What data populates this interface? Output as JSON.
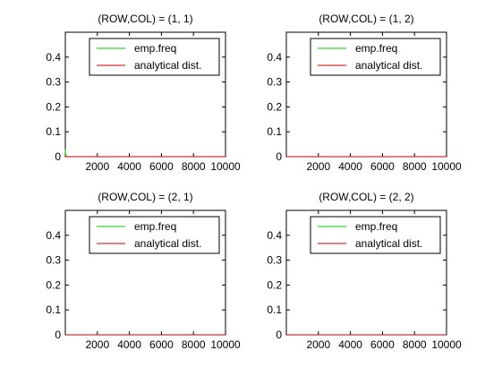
{
  "figure": {
    "background": "#ffffff",
    "axes_color": "#000000"
  },
  "chart_data": [
    {
      "type": "line",
      "title": "(ROW,COL) = (1, 1)",
      "xlabel": "",
      "ylabel": "",
      "xlim": [
        0,
        10000
      ],
      "ylim": [
        0,
        0.5
      ],
      "xticks": [
        2000,
        4000,
        6000,
        8000,
        10000
      ],
      "xtick_labels": [
        "2000",
        "4000",
        "6000",
        "8000",
        "10000"
      ],
      "yticks": [
        0,
        0.1,
        0.2,
        0.3,
        0.4
      ],
      "ytick_labels": [
        "0",
        "0.1",
        "0.2",
        "0.3",
        "0.4"
      ],
      "grid": false,
      "legend": "top-right",
      "series": [
        {
          "name": "emp.freq",
          "color": "#00cc00",
          "x": [
            1,
            10,
            30,
            60,
            100,
            200,
            500,
            1000,
            10000
          ],
          "y": [
            0.03,
            0.012,
            0.004,
            0.002,
            0.001,
            0.0005,
            0.0002,
            0.0001,
            0
          ]
        },
        {
          "name": "analytical dist.",
          "color": "#cc0000",
          "x": [
            0,
            10000
          ],
          "y": [
            0,
            0
          ]
        }
      ]
    },
    {
      "type": "line",
      "title": "(ROW,COL) = (1, 2)",
      "xlabel": "",
      "ylabel": "",
      "xlim": [
        0,
        10000
      ],
      "ylim": [
        0,
        0.5
      ],
      "xticks": [
        2000,
        4000,
        6000,
        8000,
        10000
      ],
      "xtick_labels": [
        "2000",
        "4000",
        "6000",
        "8000",
        "10000"
      ],
      "yticks": [
        0,
        0.1,
        0.2,
        0.3,
        0.4
      ],
      "ytick_labels": [
        "0",
        "0.1",
        "0.2",
        "0.3",
        "0.4"
      ],
      "grid": false,
      "legend": "top-right",
      "series": [
        {
          "name": "emp.freq",
          "color": "#00cc00",
          "x": [
            0,
            10000
          ],
          "y": [
            0,
            0
          ]
        },
        {
          "name": "analytical dist.",
          "color": "#cc0000",
          "x": [
            0,
            10000
          ],
          "y": [
            0,
            0
          ]
        }
      ]
    },
    {
      "type": "line",
      "title": "(ROW,COL) = (2, 1)",
      "xlabel": "",
      "ylabel": "",
      "xlim": [
        0,
        10000
      ],
      "ylim": [
        0,
        0.5
      ],
      "xticks": [
        2000,
        4000,
        6000,
        8000,
        10000
      ],
      "xtick_labels": [
        "2000",
        "4000",
        "6000",
        "8000",
        "10000"
      ],
      "yticks": [
        0,
        0.1,
        0.2,
        0.3,
        0.4
      ],
      "ytick_labels": [
        "0",
        "0.1",
        "0.2",
        "0.3",
        "0.4"
      ],
      "grid": false,
      "legend": "top-right",
      "series": [
        {
          "name": "emp.freq",
          "color": "#00cc00",
          "x": [
            0,
            10000
          ],
          "y": [
            0,
            0
          ]
        },
        {
          "name": "analytical dist.",
          "color": "#cc0000",
          "x": [
            0,
            10000
          ],
          "y": [
            0,
            0
          ]
        }
      ]
    },
    {
      "type": "line",
      "title": "(ROW,COL) = (2, 2)",
      "xlabel": "",
      "ylabel": "",
      "xlim": [
        0,
        10000
      ],
      "ylim": [
        0,
        0.5
      ],
      "xticks": [
        2000,
        4000,
        6000,
        8000,
        10000
      ],
      "xtick_labels": [
        "2000",
        "4000",
        "6000",
        "8000",
        "10000"
      ],
      "yticks": [
        0,
        0.1,
        0.2,
        0.3,
        0.4
      ],
      "ytick_labels": [
        "0",
        "0.1",
        "0.2",
        "0.3",
        "0.4"
      ],
      "grid": false,
      "legend": "top-right",
      "series": [
        {
          "name": "emp.freq",
          "color": "#00cc00",
          "x": [
            0,
            10000
          ],
          "y": [
            0,
            0
          ]
        },
        {
          "name": "analytical dist.",
          "color": "#cc0000",
          "x": [
            0,
            10000
          ],
          "y": [
            0,
            0
          ]
        }
      ]
    }
  ]
}
